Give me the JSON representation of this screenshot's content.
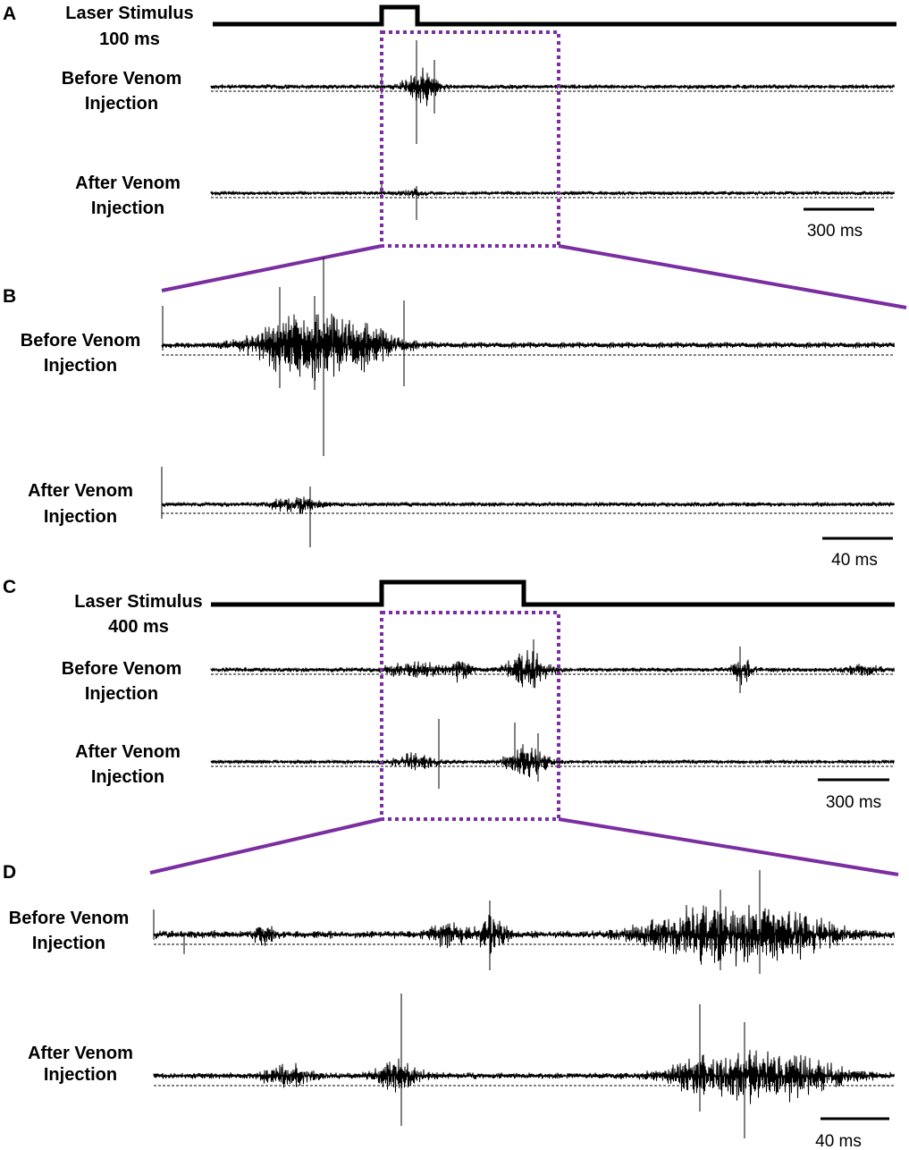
{
  "panels": [
    {
      "letter": "A",
      "stimulus_label_1": "Laser Stimulus",
      "stimulus_label_2": "100 ms",
      "before_label_1": "Before Venom",
      "before_label_2": "Injection",
      "after_label_1": "After Venom",
      "after_label_2": "Injection",
      "scale_bar": "300 ms"
    },
    {
      "letter": "B",
      "before_label_1": "Before Venom",
      "before_label_2": "Injection",
      "after_label_1": "After Venom",
      "after_label_2": "Injection",
      "scale_bar": "40 ms"
    },
    {
      "letter": "C",
      "stimulus_label_1": "Laser Stimulus",
      "stimulus_label_2": "400 ms",
      "before_label_1": "Before Venom",
      "before_label_2": "Injection",
      "after_label_1": "After Venom",
      "after_label_2": "Injection",
      "scale_bar": "300 ms"
    },
    {
      "letter": "D",
      "before_label_1": "Before Venom",
      "before_label_2": "Injection",
      "after_label_1": "After Venom",
      "after_label_2": "Injection",
      "scale_bar": "40 ms"
    }
  ],
  "colors": {
    "zoom_box": "#7a2ea0",
    "trace": "#000000"
  }
}
